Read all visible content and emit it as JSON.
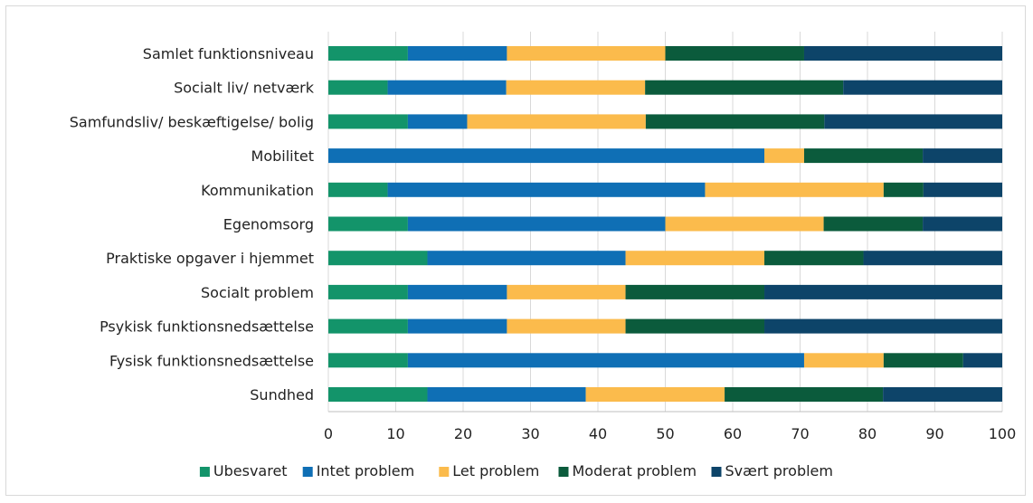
{
  "chart_data": {
    "type": "bar",
    "orientation": "horizontal",
    "stacked": true,
    "title": "",
    "xlabel": "",
    "ylabel": "",
    "xlim": [
      0,
      100
    ],
    "x_ticks": [
      "0",
      "10",
      "20",
      "30",
      "40",
      "50",
      "60",
      "70",
      "80",
      "90",
      "100"
    ],
    "grid": "vertical",
    "legend_position": "bottom",
    "categories": [
      "Samlet funktionsniveau",
      "Socialt liv/ netværk",
      "Samfundsliv/ beskæftigelse/ bolig",
      "Mobilitet",
      "Kommunikation",
      "Egenomsorg",
      "Praktiske opgaver i hjemmet",
      "Socialt problem",
      "Psykisk funktionsnedsættelse",
      "Fysisk funktionsnedsættelse",
      "Sundhed"
    ],
    "series": [
      {
        "name": "Ubesvaret",
        "color": "#13946a",
        "values": [
          11.8,
          8.8,
          11.8,
          0,
          8.8,
          11.8,
          14.7,
          11.8,
          11.8,
          11.8,
          14.7
        ]
      },
      {
        "name": "Intet problem",
        "color": "#0f6fb5",
        "values": [
          14.7,
          17.6,
          8.8,
          64.7,
          47.1,
          38.2,
          29.4,
          14.7,
          14.7,
          58.8,
          23.5
        ]
      },
      {
        "name": "Let problem",
        "color": "#fbbb4c",
        "values": [
          23.5,
          20.6,
          26.5,
          5.9,
          26.5,
          23.5,
          20.6,
          17.6,
          17.6,
          11.8,
          20.6
        ]
      },
      {
        "name": "Moderat problem",
        "color": "#0b5b3c",
        "values": [
          20.6,
          29.4,
          26.5,
          17.6,
          5.9,
          14.7,
          14.7,
          20.6,
          20.6,
          11.8,
          23.5
        ]
      },
      {
        "name": "Svært problem",
        "color": "#0d4469",
        "values": [
          29.4,
          23.6,
          26.4,
          11.8,
          11.7,
          11.8,
          20.6,
          35.3,
          35.3,
          5.8,
          17.7
        ]
      }
    ]
  }
}
